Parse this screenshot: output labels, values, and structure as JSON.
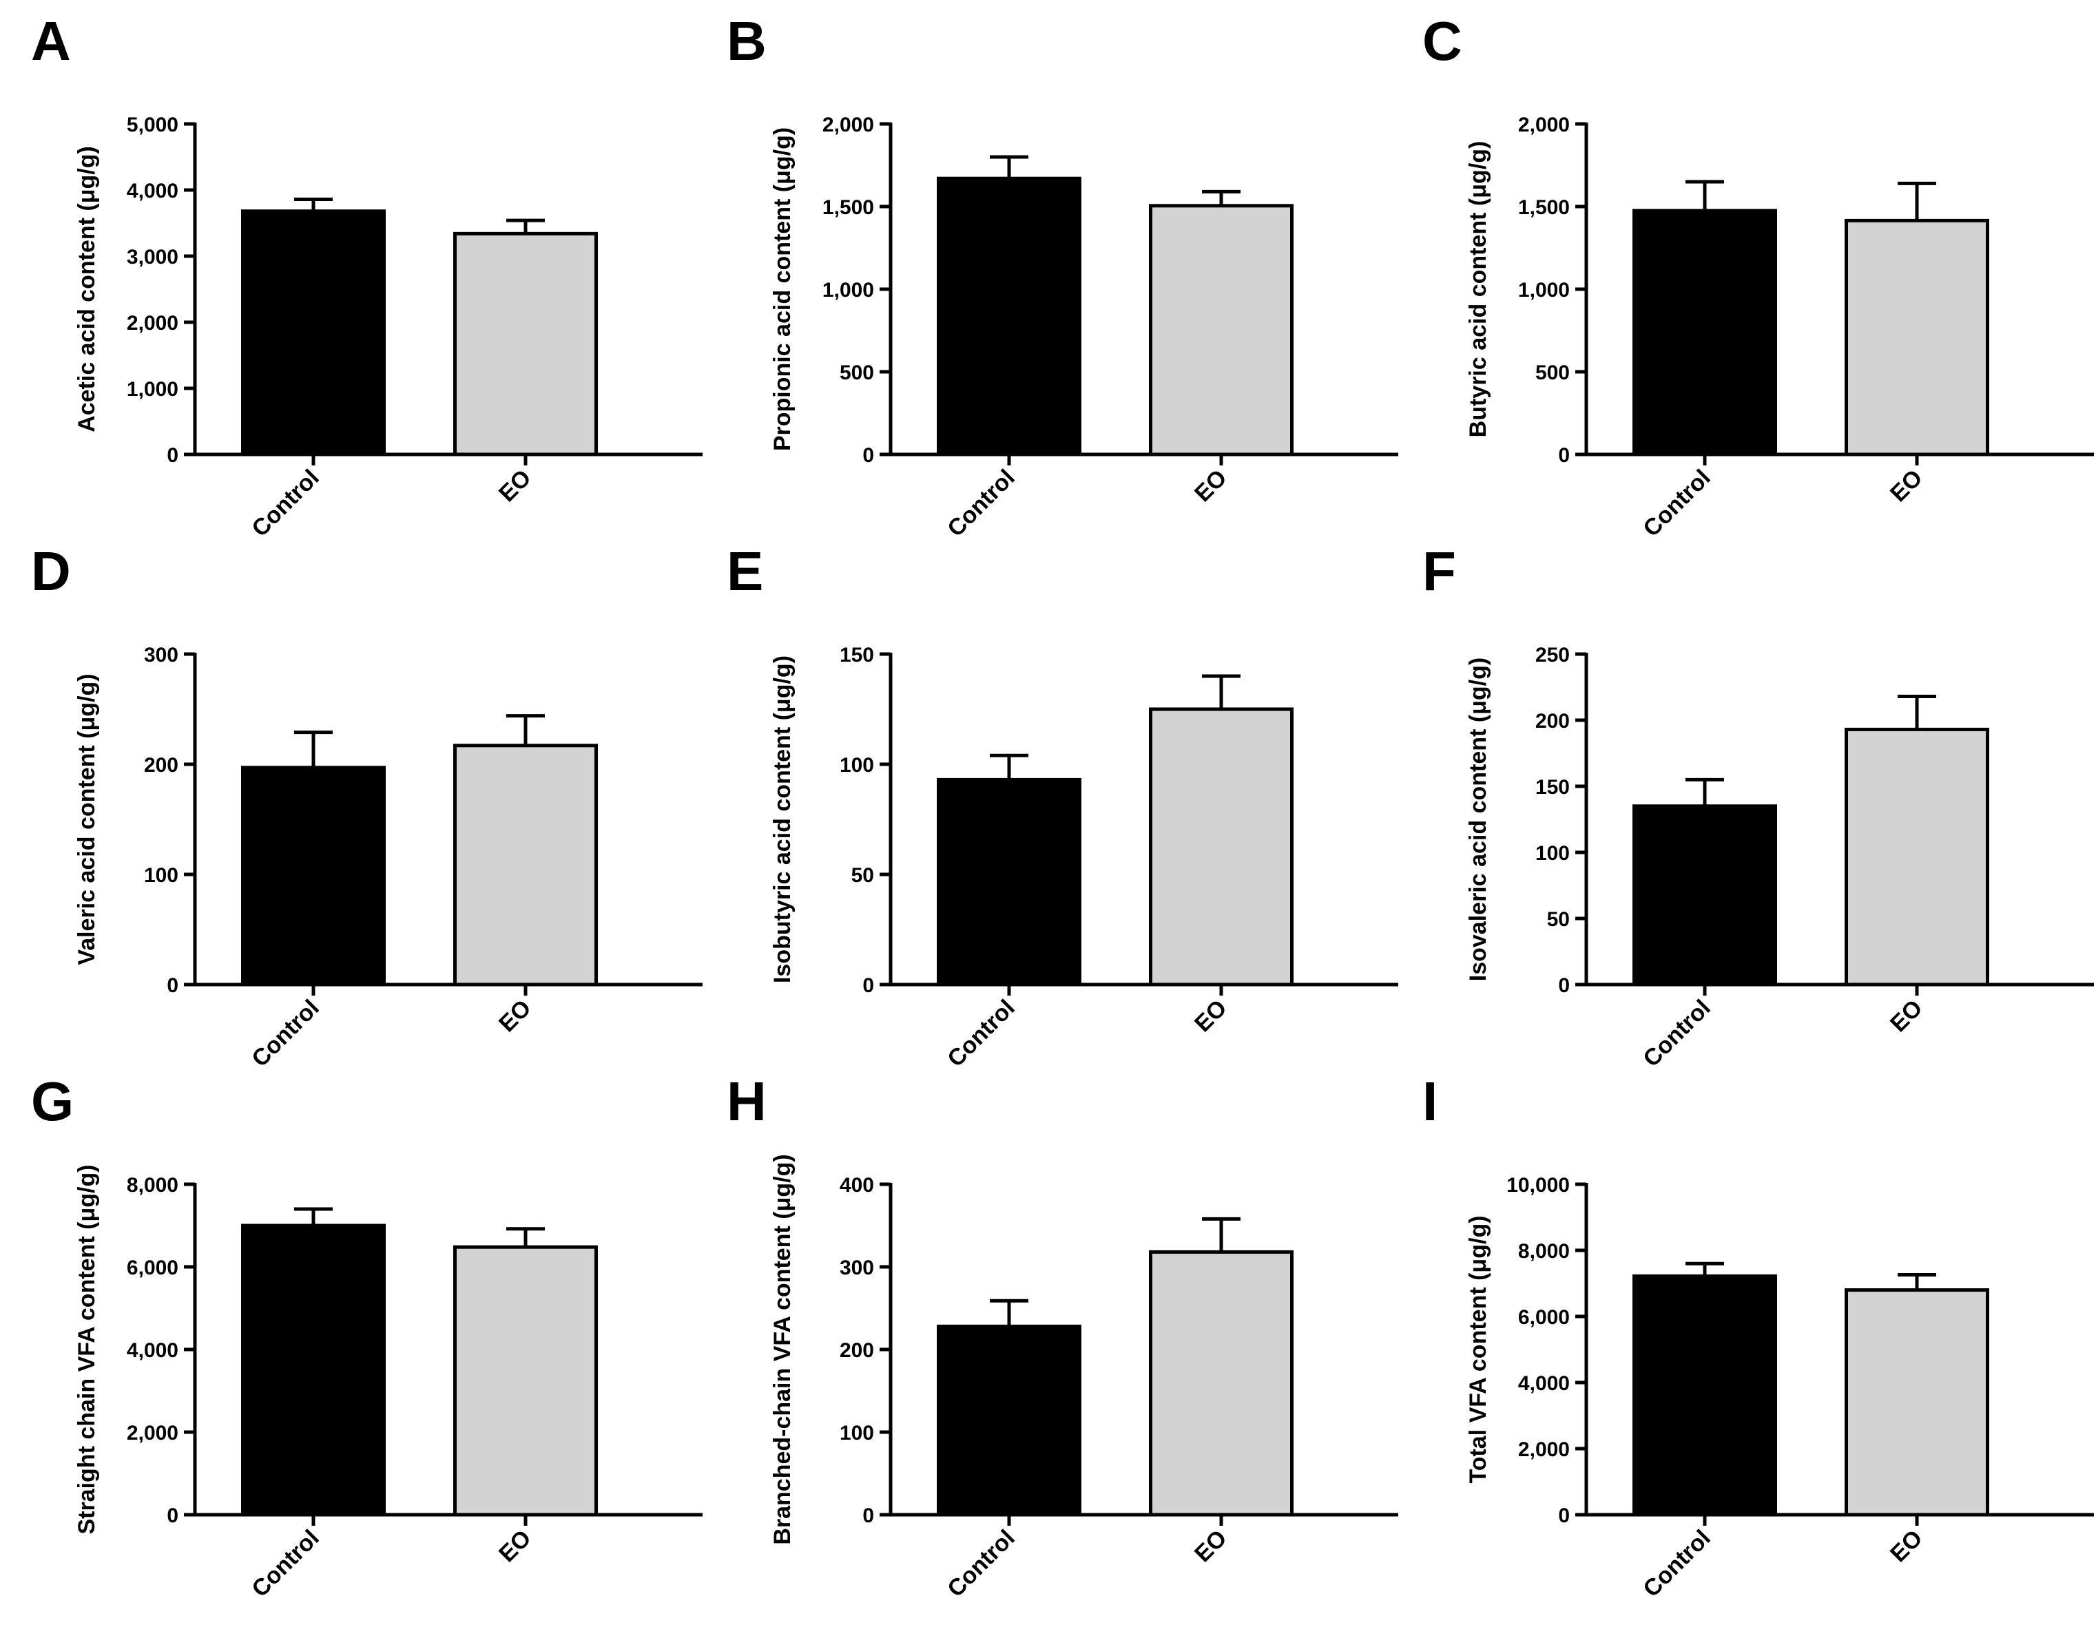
{
  "colors": {
    "control_fill": "#000000",
    "eo_fill": "#d3d3d3",
    "stroke": "#000000"
  },
  "chart_data": [
    {
      "panel": "A",
      "type": "bar",
      "categories": [
        "Control",
        "EO"
      ],
      "values": [
        3680,
        3340
      ],
      "error_upper": [
        3860,
        3540
      ],
      "ylabel": "Acetic acid content (μg/g)",
      "ylim": [
        0,
        5000
      ],
      "yticks": [
        0,
        1000,
        2000,
        3000,
        4000,
        5000
      ],
      "ytick_labels": [
        "0",
        "1,000",
        "2,000",
        "3,000",
        "4,000",
        "5,000"
      ]
    },
    {
      "panel": "B",
      "type": "bar",
      "categories": [
        "Control",
        "EO"
      ],
      "values": [
        1670,
        1505
      ],
      "error_upper": [
        1800,
        1590
      ],
      "ylabel": "Propionic acid content (μg/g)",
      "ylim": [
        0,
        2000
      ],
      "yticks": [
        0,
        500,
        1000,
        1500,
        2000
      ],
      "ytick_labels": [
        "0",
        "500",
        "1,000",
        "1,500",
        "2,000"
      ]
    },
    {
      "panel": "C",
      "type": "bar",
      "categories": [
        "Control",
        "EO"
      ],
      "values": [
        1475,
        1415
      ],
      "error_upper": [
        1650,
        1640
      ],
      "ylabel": "Butyric acid content (μg/g)",
      "ylim": [
        0,
        2000
      ],
      "yticks": [
        0,
        500,
        1000,
        1500,
        2000
      ],
      "ytick_labels": [
        "0",
        "500",
        "1,000",
        "1,500",
        "2,000"
      ]
    },
    {
      "panel": "D",
      "type": "bar",
      "categories": [
        "Control",
        "EO"
      ],
      "values": [
        197,
        217
      ],
      "error_upper": [
        229,
        244
      ],
      "ylabel": "Valeric acid content (μg/g)",
      "ylim": [
        0,
        300
      ],
      "yticks": [
        0,
        100,
        200,
        300
      ],
      "ytick_labels": [
        "0",
        "100",
        "200",
        "300"
      ]
    },
    {
      "panel": "E",
      "type": "bar",
      "categories": [
        "Control",
        "EO"
      ],
      "values": [
        93,
        125
      ],
      "error_upper": [
        104,
        140
      ],
      "ylabel": "Isobutyric acid content (μg/g)",
      "ylim": [
        0,
        150
      ],
      "yticks": [
        0,
        50,
        100,
        150
      ],
      "ytick_labels": [
        "0",
        "50",
        "100",
        "150"
      ]
    },
    {
      "panel": "F",
      "type": "bar",
      "categories": [
        "Control",
        "EO"
      ],
      "values": [
        135,
        193
      ],
      "error_upper": [
        155,
        218
      ],
      "ylabel": "Isovaleric acid content (μg/g)",
      "ylim": [
        0,
        250
      ],
      "yticks": [
        0,
        50,
        100,
        150,
        200,
        250
      ],
      "ytick_labels": [
        "0",
        "50",
        "100",
        "150",
        "200",
        "250"
      ]
    },
    {
      "panel": "G",
      "type": "bar",
      "categories": [
        "Control",
        "EO"
      ],
      "values": [
        7000,
        6480
      ],
      "error_upper": [
        7400,
        6920
      ],
      "ylabel": "Straight chain VFA content (μg/g)",
      "ylim": [
        0,
        8000
      ],
      "yticks": [
        0,
        2000,
        4000,
        6000,
        8000
      ],
      "ytick_labels": [
        "0",
        "2,000",
        "4,000",
        "6,000",
        "8,000"
      ]
    },
    {
      "panel": "H",
      "type": "bar",
      "categories": [
        "Control",
        "EO"
      ],
      "values": [
        228,
        318
      ],
      "error_upper": [
        259,
        358
      ],
      "ylabel": "Branched-chain VFA content (μg/g)",
      "ylim": [
        0,
        400
      ],
      "yticks": [
        0,
        100,
        200,
        300,
        400
      ],
      "ytick_labels": [
        "0",
        "100",
        "200",
        "300",
        "400"
      ]
    },
    {
      "panel": "I",
      "type": "bar",
      "categories": [
        "Control",
        "EO"
      ],
      "values": [
        7220,
        6800
      ],
      "error_upper": [
        7600,
        7260
      ],
      "ylabel": "Total VFA content (μg/g)",
      "ylim": [
        0,
        10000
      ],
      "yticks": [
        0,
        2000,
        4000,
        6000,
        8000,
        10000
      ],
      "ytick_labels": [
        "0",
        "2,000",
        "4,000",
        "6,000",
        "8,000",
        "10,000"
      ]
    }
  ]
}
